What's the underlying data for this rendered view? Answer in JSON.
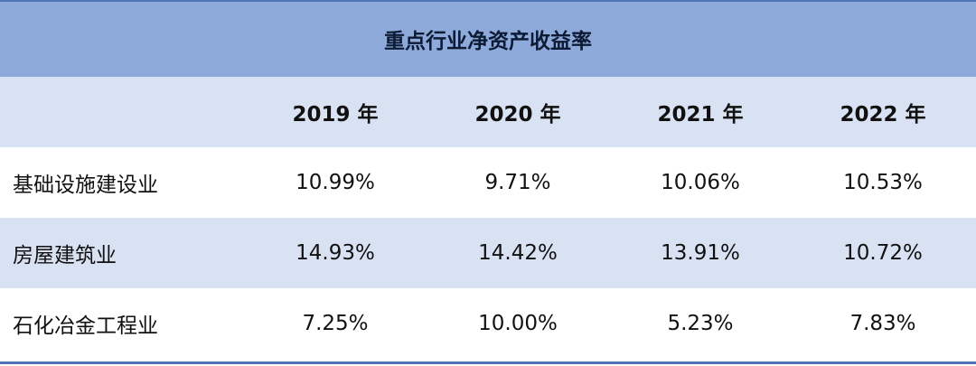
{
  "table": {
    "title": "重点行业净资产收益率",
    "columns": [
      "2019 年",
      "2020 年",
      "2021 年",
      "2022 年"
    ],
    "rows": [
      {
        "label": "基础设施建设业",
        "values": [
          "10.99%",
          "9.71%",
          "10.06%",
          "10.53%"
        ]
      },
      {
        "label": "房屋建筑业",
        "values": [
          "14.93%",
          "14.42%",
          "13.91%",
          "10.72%"
        ]
      },
      {
        "label": "石化冶金工程业",
        "values": [
          "7.25%",
          "10.00%",
          "5.23%",
          "7.83%"
        ]
      }
    ]
  },
  "colors": {
    "title_band": "#8eaadb",
    "alt_band": "#d9e2f3",
    "rule": "#4f74b8"
  }
}
